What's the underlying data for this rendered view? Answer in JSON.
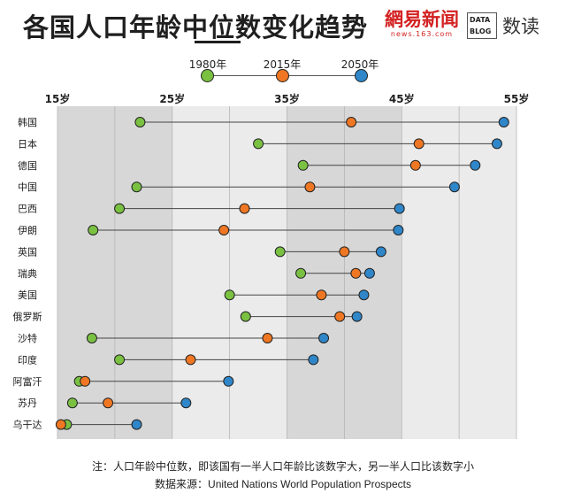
{
  "header": {
    "title": "各国人口年龄中位数变化趋势",
    "brand_main": "網易新闻",
    "brand_url": "news.163.com",
    "data_blog_line1": "DATA",
    "data_blog_line2": "BLOG",
    "brand_name": "数读"
  },
  "colors": {
    "y1980": "#7ac142",
    "y2015": "#ef7723",
    "y2050": "#2f86c8",
    "band_dark": "#d7d7d7",
    "band_light": "#ebebeb",
    "title": "#1f1f1f",
    "brand_red": "#d32222"
  },
  "footer": {
    "note": "注：人口年龄中位数，即该国有一半人口年龄比该数字大，另一半人口比该数字小",
    "source_prefix": "数据来源：",
    "source_name": "United Nations World Population Prospects"
  },
  "chart_data": {
    "type": "dumbbell",
    "title": "各国人口年龄中位数变化趋势",
    "xlim": [
      15,
      55
    ],
    "x_ticks": [
      15,
      25,
      35,
      45,
      55
    ],
    "x_tick_labels": [
      "15岁",
      "25岁",
      "35岁",
      "45岁",
      "55岁"
    ],
    "legend": [
      "1980年",
      "2015年",
      "2050年"
    ],
    "series_keys": [
      "y1980",
      "y2015",
      "y2050"
    ],
    "countries": [
      {
        "name": "韩国",
        "y1980": 22.2,
        "y2015": 40.6,
        "y2050": 53.9
      },
      {
        "name": "日本",
        "y1980": 32.5,
        "y2015": 46.5,
        "y2050": 53.3
      },
      {
        "name": "德国",
        "y1980": 36.4,
        "y2015": 46.2,
        "y2050": 51.4
      },
      {
        "name": "中国",
        "y1980": 21.9,
        "y2015": 37.0,
        "y2050": 49.6
      },
      {
        "name": "巴西",
        "y1980": 20.4,
        "y2015": 31.3,
        "y2050": 44.8
      },
      {
        "name": "伊朗",
        "y1980": 18.1,
        "y2015": 29.5,
        "y2050": 44.7
      },
      {
        "name": "英国",
        "y1980": 34.4,
        "y2015": 40.0,
        "y2050": 43.2
      },
      {
        "name": "瑞典",
        "y1980": 36.2,
        "y2015": 41.0,
        "y2050": 42.2
      },
      {
        "name": "美国",
        "y1980": 30.0,
        "y2015": 38.0,
        "y2050": 41.7
      },
      {
        "name": "俄罗斯",
        "y1980": 31.4,
        "y2015": 39.6,
        "y2050": 41.1
      },
      {
        "name": "沙特",
        "y1980": 18.0,
        "y2015": 33.3,
        "y2050": 38.2
      },
      {
        "name": "印度",
        "y1980": 20.4,
        "y2015": 26.6,
        "y2050": 37.3
      },
      {
        "name": "阿富汗",
        "y1980": 16.9,
        "y2015": 17.4,
        "y2050": 29.9
      },
      {
        "name": "苏丹",
        "y1980": 16.3,
        "y2015": 19.4,
        "y2050": 26.2
      },
      {
        "name": "乌干达",
        "y1980": 15.8,
        "y2015": 15.3,
        "y2050": 21.9
      }
    ]
  }
}
